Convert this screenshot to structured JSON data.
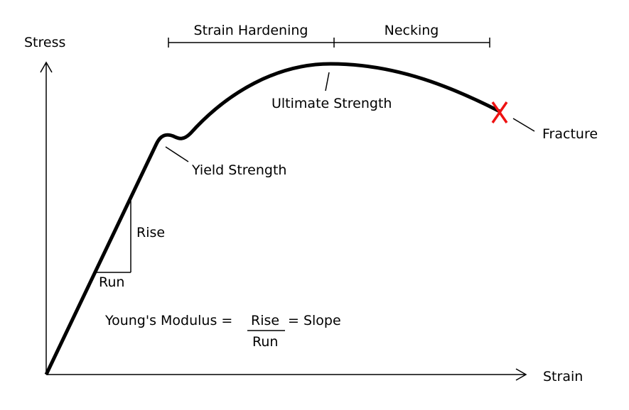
{
  "axes": {
    "y_label": "Stress",
    "x_label": "Strain"
  },
  "regions": {
    "strain_hardening": "Strain Hardening",
    "necking": "Necking"
  },
  "annotations": {
    "ultimate_strength": "Ultimate Strength",
    "yield_strength": "Yield Strength",
    "fracture": "Fracture",
    "rise": "Rise",
    "run": "Run"
  },
  "formula": {
    "lhs": "Young's Modulus =",
    "numerator": "Rise",
    "denominator": "Run",
    "rhs": "= Slope"
  },
  "colors": {
    "curve": "#000000",
    "fracture_mark": "#ee1111"
  }
}
